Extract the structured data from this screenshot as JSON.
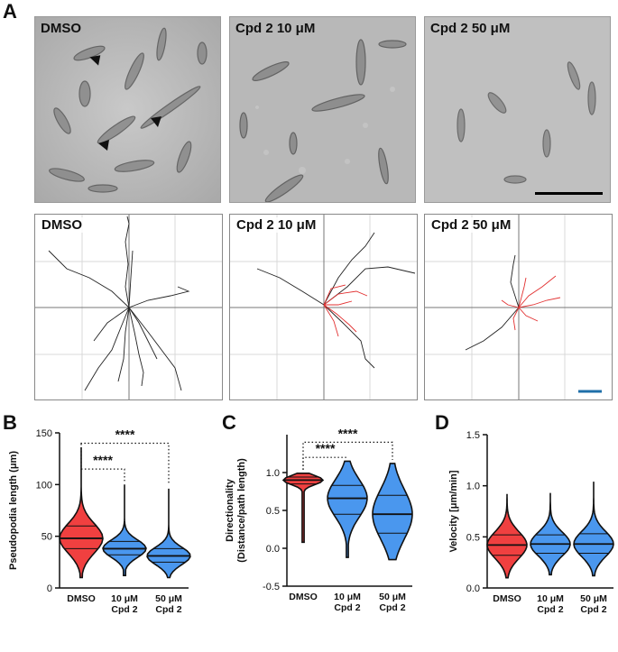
{
  "panels": {
    "A": "A",
    "B": "B",
    "C": "C",
    "D": "D"
  },
  "conditions": [
    "DMSO",
    "Cpd 2 10 μM",
    "Cpd 2 50 μM"
  ],
  "colors": {
    "dmso": "#f04040",
    "cpd": "#4a97ee",
    "track_dmso": "#222222",
    "track_cpd": "#e23030",
    "scale_bar_micro": "#000000",
    "scale_bar_track": "#1f6fa8"
  },
  "micrographs": {
    "arrowhead_icons": [
      "arrowhead-icon",
      "arrowhead-icon",
      "arrowhead-icon",
      "arrowhead-icon"
    ]
  },
  "chart_data": [
    {
      "type": "violin",
      "panel": "B",
      "ylabel": "Pseudopodia length (μm)",
      "ylim": [
        0,
        150
      ],
      "yticks": [
        "0",
        "50",
        "100",
        "150"
      ],
      "ytick_values": [
        0,
        50,
        100,
        150
      ],
      "categories": [
        "DMSO",
        "10 μM\nCpd 2",
        "50 μM\nCpd 2"
      ],
      "category_lines": [
        [
          "DMSO"
        ],
        [
          "10 μM",
          "Cpd 2"
        ],
        [
          "50 μM",
          "Cpd 2"
        ]
      ],
      "violins": [
        {
          "min": 10,
          "q1": 38,
          "median": 48,
          "q3": 60,
          "max": 136,
          "color": "#f04040"
        },
        {
          "min": 12,
          "q1": 32,
          "median": 38,
          "q3": 45,
          "max": 100,
          "color": "#4a97ee"
        },
        {
          "min": 10,
          "q1": 25,
          "median": 31,
          "q3": 38,
          "max": 96,
          "color": "#4a97ee"
        }
      ],
      "significance": [
        {
          "from": 0,
          "to": 1,
          "label": "****",
          "y": 115
        },
        {
          "from": 0,
          "to": 2,
          "label": "****",
          "y": 140
        }
      ]
    },
    {
      "type": "violin",
      "panel": "C",
      "ylabel": "Directionality\n(Distance/path length)",
      "ylabel_lines": [
        "Directionality",
        "(Distance/path length)"
      ],
      "ylim": [
        -0.5,
        1.5
      ],
      "yticks": [
        "-0.5",
        "0.0",
        "0.5",
        "1.0"
      ],
      "ytick_values": [
        -0.5,
        0,
        0.5,
        1.0
      ],
      "categories": [
        "DMSO",
        "10 μM\nCpd 2",
        "50 μM\nCpd 2"
      ],
      "category_lines": [
        [
          "DMSO"
        ],
        [
          "10 μM",
          "Cpd 2"
        ],
        [
          "50 μM",
          "Cpd 2"
        ]
      ],
      "violins": [
        {
          "min": 0.08,
          "q1": 0.85,
          "median": 0.9,
          "q3": 0.94,
          "max": 0.99,
          "color": "#f04040"
        },
        {
          "min": -0.12,
          "q1": 0.45,
          "median": 0.66,
          "q3": 0.83,
          "max": 1.15,
          "color": "#4a97ee"
        },
        {
          "min": -0.15,
          "q1": 0.2,
          "median": 0.45,
          "q3": 0.7,
          "max": 1.12,
          "color": "#4a97ee"
        }
      ],
      "significance": [
        {
          "from": 0,
          "to": 1,
          "label": "****",
          "y": 1.2
        },
        {
          "from": 0,
          "to": 2,
          "label": "****",
          "y": 1.4
        }
      ]
    },
    {
      "type": "violin",
      "panel": "D",
      "ylabel": "Velocity [μm/min]",
      "ylim": [
        0,
        1.5
      ],
      "yticks": [
        "0.0",
        "0.5",
        "1.0",
        "1.5"
      ],
      "ytick_values": [
        0,
        0.5,
        1.0,
        1.5
      ],
      "categories": [
        "DMSO",
        "10 μM\nCpd 2",
        "50 μM\nCpd 2"
      ],
      "category_lines": [
        [
          "DMSO"
        ],
        [
          "10 μM",
          "Cpd 2"
        ],
        [
          "50 μM",
          "Cpd 2"
        ]
      ],
      "violins": [
        {
          "min": 0.1,
          "q1": 0.32,
          "median": 0.42,
          "q3": 0.52,
          "max": 0.92,
          "color": "#f04040"
        },
        {
          "min": 0.13,
          "q1": 0.34,
          "median": 0.43,
          "q3": 0.52,
          "max": 0.93,
          "color": "#4a97ee"
        },
        {
          "min": 0.12,
          "q1": 0.34,
          "median": 0.43,
          "q3": 0.53,
          "max": 1.04,
          "color": "#4a97ee"
        }
      ],
      "significance": []
    }
  ]
}
